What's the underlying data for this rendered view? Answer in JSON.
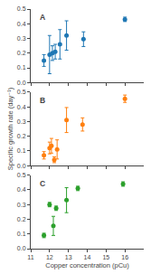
{
  "chart_data": [
    {
      "type": "scatter",
      "title": "A",
      "x": [
        11.7,
        12.0,
        12.15,
        12.3,
        12.55,
        12.9,
        13.8,
        16.0
      ],
      "values": [
        0.15,
        0.19,
        0.2,
        0.21,
        0.26,
        0.32,
        0.295,
        0.43
      ],
      "yerr": [
        0.04,
        0.13,
        0.05,
        0.05,
        0.1,
        0.1,
        0.05,
        0.015
      ],
      "xlim": [
        11,
        17
      ],
      "ylim": [
        0,
        0.5
      ],
      "xticks": [
        11,
        12,
        13,
        14,
        15,
        16
      ],
      "yticks": [
        {
          "value": 0,
          "label": "0.0"
        },
        0.1,
        0.2,
        0.3,
        0.4,
        0.5
      ],
      "tick_labels": "y",
      "grid": false
    },
    {
      "type": "scatter",
      "title": "B",
      "ylabel": "Specific growth rate (day⁻¹)",
      "x": [
        11.7,
        12.0,
        12.1,
        12.25,
        12.4,
        12.9,
        13.75,
        16.0
      ],
      "values": [
        0.07,
        0.12,
        0.135,
        0.04,
        0.11,
        0.31,
        0.28,
        0.455
      ],
      "yerr": [
        0.025,
        0.04,
        0.05,
        0.02,
        0.065,
        0.085,
        0.045,
        0.025
      ],
      "xlim": [
        11,
        17
      ],
      "ylim": [
        0,
        0.5
      ],
      "xticks": [
        11,
        12,
        13,
        14,
        15,
        16
      ],
      "yticks": [
        {
          "value": 0,
          "label": "0.0"
        },
        0.1,
        0.2,
        0.3,
        0.4,
        0.5
      ],
      "tick_labels": "y",
      "grid": false
    },
    {
      "type": "scatter",
      "title": "C",
      "xlabel": "Copper concentration (pCu)",
      "x": [
        11.7,
        12.0,
        12.2,
        12.35,
        12.9,
        13.5,
        15.9
      ],
      "values": [
        0.09,
        0.3,
        0.155,
        0.275,
        0.33,
        0.41,
        0.44
      ],
      "yerr": [
        0.015,
        0.015,
        0.065,
        0.015,
        0.085,
        0.015,
        0.015
      ],
      "xlim": [
        11,
        17
      ],
      "ylim": [
        0,
        0.5
      ],
      "xticks": [
        11,
        12,
        13,
        14,
        15,
        16
      ],
      "yticks": [
        {
          "value": 0,
          "label": "0.0"
        },
        0.1,
        0.2,
        0.3,
        0.4,
        0.5
      ],
      "grid": false
    }
  ]
}
